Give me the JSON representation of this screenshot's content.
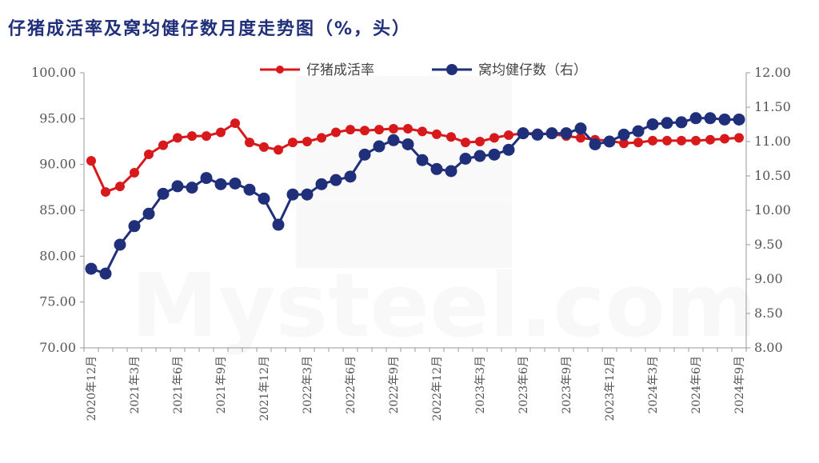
{
  "title": "仔猪成活率及窝均健仔数月度走势图（%，头）",
  "colors": {
    "left_series": "#d7191c",
    "right_series": "#1f2f7a",
    "axis": "#999999",
    "title": "#1f2f7a"
  },
  "chart_data": {
    "type": "line",
    "title": "仔猪成活率及窝均健仔数月度走势图（%，头）",
    "x": [
      "2020年12月",
      "2021年1月",
      "2021年2月",
      "2021年3月",
      "2021年4月",
      "2021年5月",
      "2021年6月",
      "2021年7月",
      "2021年8月",
      "2021年9月",
      "2021年10月",
      "2021年11月",
      "2021年12月",
      "2022年1月",
      "2022年2月",
      "2022年3月",
      "2022年4月",
      "2022年5月",
      "2022年6月",
      "2022年7月",
      "2022年8月",
      "2022年9月",
      "2022年10月",
      "2022年11月",
      "2022年12月",
      "2023年1月",
      "2023年2月",
      "2023年3月",
      "2023年4月",
      "2023年5月",
      "2023年6月",
      "2023年7月",
      "2023年8月",
      "2023年9月",
      "2023年10月",
      "2023年11月",
      "2023年12月",
      "2024年1月",
      "2024年2月",
      "2024年3月",
      "2024年4月",
      "2024年5月",
      "2024年6月",
      "2024年7月",
      "2024年8月",
      "2024年9月"
    ],
    "x_tick_labels": [
      "2020年12月",
      "2021年3月",
      "2021年6月",
      "2021年9月",
      "2021年12月",
      "2022年3月",
      "2022年6月",
      "2022年9月",
      "2022年12月",
      "2023年3月",
      "2023年6月",
      "2023年9月",
      "2023年12月",
      "2024年3月",
      "2024年6月",
      "2024年9月"
    ],
    "x_tick_every": 3,
    "series": [
      {
        "name": "仔猪成活率",
        "axis": "left",
        "color": "#d7191c",
        "values": [
          90.4,
          87.0,
          87.6,
          89.1,
          91.1,
          92.1,
          92.9,
          93.1,
          93.1,
          93.5,
          94.5,
          92.4,
          91.9,
          91.6,
          92.4,
          92.5,
          92.9,
          93.5,
          93.8,
          93.7,
          93.8,
          93.9,
          93.9,
          93.6,
          93.3,
          93.0,
          92.4,
          92.5,
          92.9,
          93.2,
          93.4,
          93.4,
          93.3,
          93.1,
          92.9,
          92.7,
          92.6,
          92.3,
          92.4,
          92.6,
          92.6,
          92.6,
          92.6,
          92.7,
          92.8,
          92.9
        ]
      },
      {
        "name": "窝均健仔数（右）",
        "axis": "right",
        "color": "#1f2f7a",
        "values": [
          9.15,
          9.08,
          9.5,
          9.77,
          9.95,
          10.24,
          10.35,
          10.33,
          10.47,
          10.38,
          10.39,
          10.3,
          10.17,
          9.79,
          10.23,
          10.23,
          10.38,
          10.44,
          10.49,
          10.81,
          10.93,
          11.02,
          10.96,
          10.73,
          10.6,
          10.57,
          10.75,
          10.79,
          10.81,
          10.88,
          11.12,
          11.1,
          11.12,
          11.12,
          11.19,
          10.96,
          11.0,
          11.1,
          11.15,
          11.25,
          11.27,
          11.28,
          11.34,
          11.34,
          11.32,
          11.32
        ]
      }
    ],
    "y_left": {
      "min": 70,
      "max": 100,
      "step": 5,
      "decimals": 2
    },
    "y_right": {
      "min": 8.0,
      "max": 12.0,
      "step": 0.5,
      "decimals": 2
    },
    "legend": "top-center",
    "grid": false
  }
}
